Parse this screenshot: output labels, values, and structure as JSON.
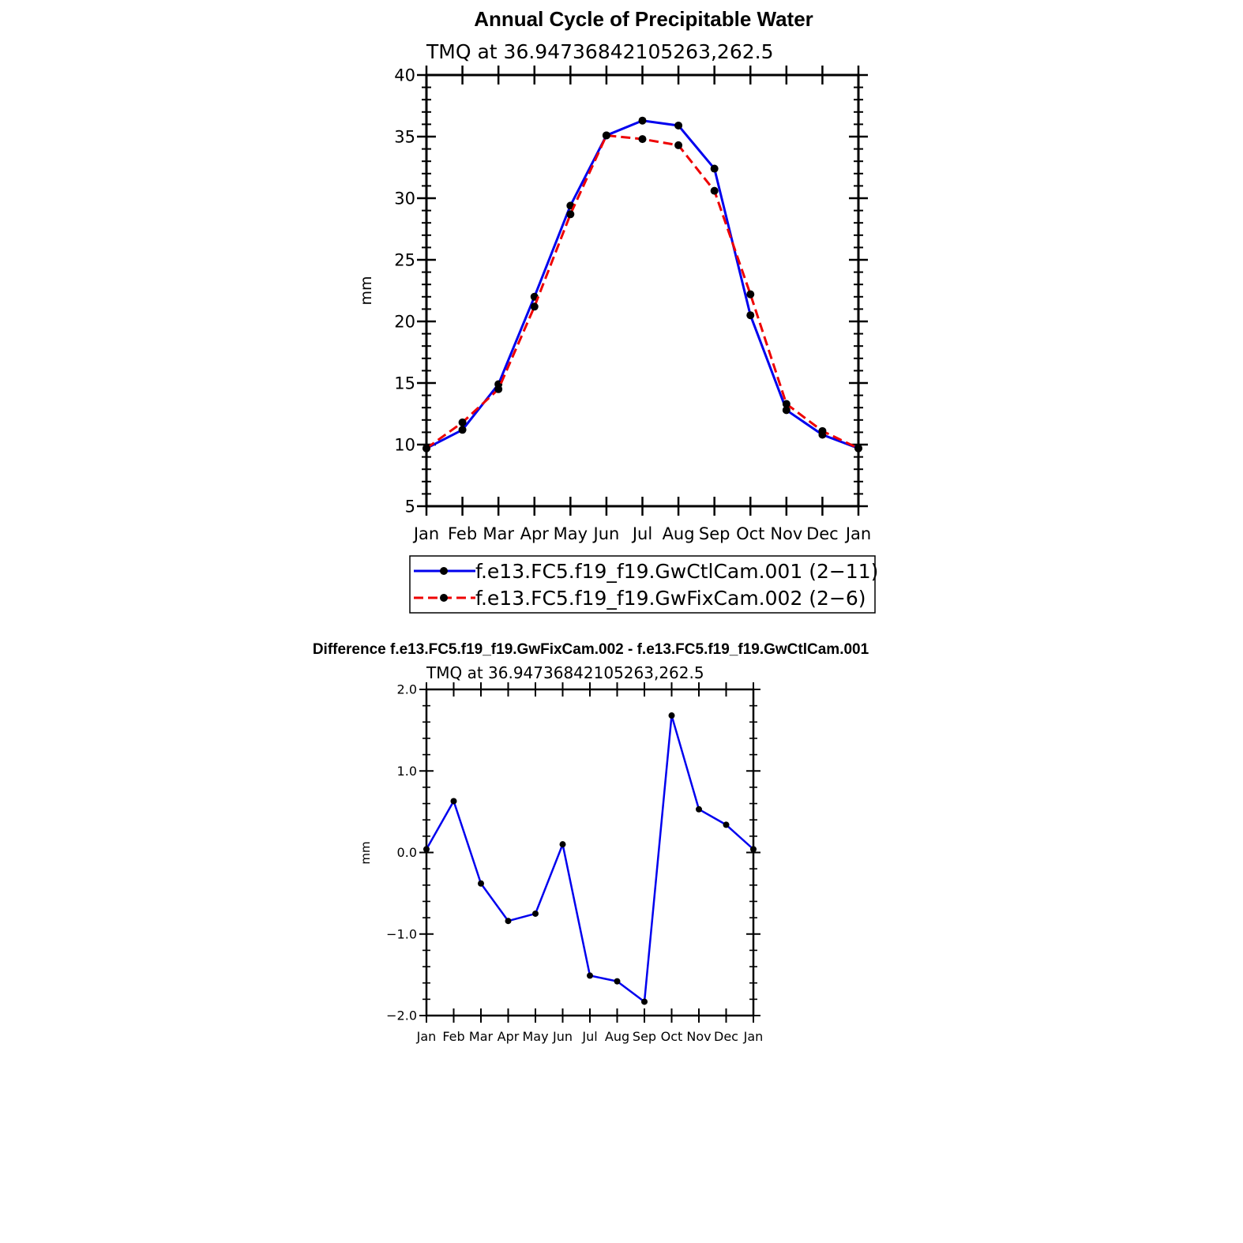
{
  "chart_data": [
    {
      "type": "line",
      "title": "Annual Cycle of Precipitable Water",
      "subtitle": "TMQ  at  36.94736842105263,262.5",
      "ylabel": "mm",
      "xlabel": "",
      "ylim": [
        5,
        40
      ],
      "yticks": [
        "5",
        "10",
        "15",
        "20",
        "25",
        "30",
        "35",
        "40"
      ],
      "categories": [
        "Jan",
        "Feb",
        "Mar",
        "Apr",
        "May",
        "Jun",
        "Jul",
        "Aug",
        "Sep",
        "Oct",
        "Nov",
        "Dec",
        "Jan"
      ],
      "series": [
        {
          "name": "f.e13.FC5.f19_f19.GwCtlCam.001 (2−11)",
          "color": "#0000ee",
          "style": "solid",
          "values": [
            9.7,
            11.2,
            14.9,
            22.0,
            29.4,
            35.1,
            36.3,
            35.9,
            32.4,
            20.5,
            12.8,
            10.8,
            9.7
          ]
        },
        {
          "name": "f.e13.FC5.f19_f19.GwFixCam.002 (2−6)",
          "color": "#ee0000",
          "style": "dashed",
          "values": [
            9.7,
            11.8,
            14.5,
            21.2,
            28.7,
            35.1,
            34.8,
            34.3,
            30.6,
            22.2,
            13.3,
            11.1,
            9.7
          ]
        }
      ],
      "legend_position": "bottom"
    },
    {
      "type": "line",
      "title": "Difference f.e13.FC5.f19_f19.GwFixCam.002 - f.e13.FC5.f19_f19.GwCtlCam.001",
      "subtitle": "TMQ  at  36.94736842105263,262.5",
      "ylabel": "mm",
      "xlabel": "",
      "ylim": [
        -2.0,
        2.0
      ],
      "yticks": [
        "−2.0",
        "−1.0",
        "0.0",
        "1.0",
        "2.0"
      ],
      "categories": [
        "Jan",
        "Feb",
        "Mar",
        "Apr",
        "May",
        "Jun",
        "Jul",
        "Aug",
        "Sep",
        "Oct",
        "Nov",
        "Dec",
        "Jan"
      ],
      "series": [
        {
          "name": "difference",
          "color": "#0000ee",
          "style": "solid",
          "values": [
            0.04,
            0.63,
            -0.38,
            -0.84,
            -0.75,
            0.1,
            -1.51,
            -1.58,
            -1.83,
            1.68,
            0.53,
            0.34,
            0.04
          ]
        }
      ]
    }
  ]
}
